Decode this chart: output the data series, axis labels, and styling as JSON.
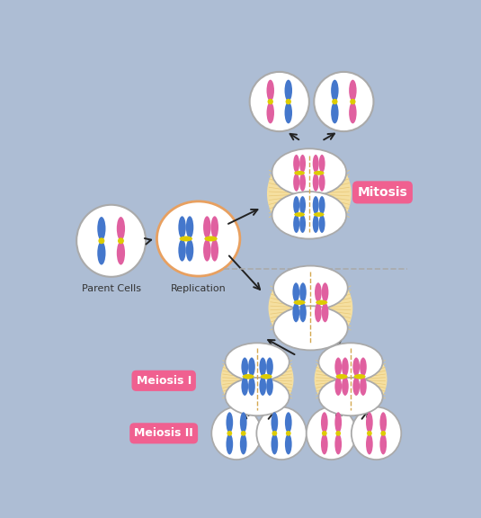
{
  "background_color": "#adbdd4",
  "cell_fill": "#ffffff",
  "cell_edge": "#aaaaaa",
  "blue_chr": "#4477cc",
  "pink_chr": "#e060a0",
  "centromere_color": "#ddcc00",
  "spindle_color": "#f5dfa0",
  "spindle_edge": "#e8c878",
  "label_color": "#333333",
  "mitosis_label": "Mitosis",
  "meiosis1_label": "Meiosis I",
  "meiosis2_label": "Meiosis II",
  "parent_label": "Parent Cells",
  "replication_label": "Replication",
  "tag_fill": "#f06090",
  "tag_text": "#ffffff",
  "dashed_line_color": "#aaaaaa",
  "arrow_color": "#222222",
  "replication_border": "#e8a060"
}
